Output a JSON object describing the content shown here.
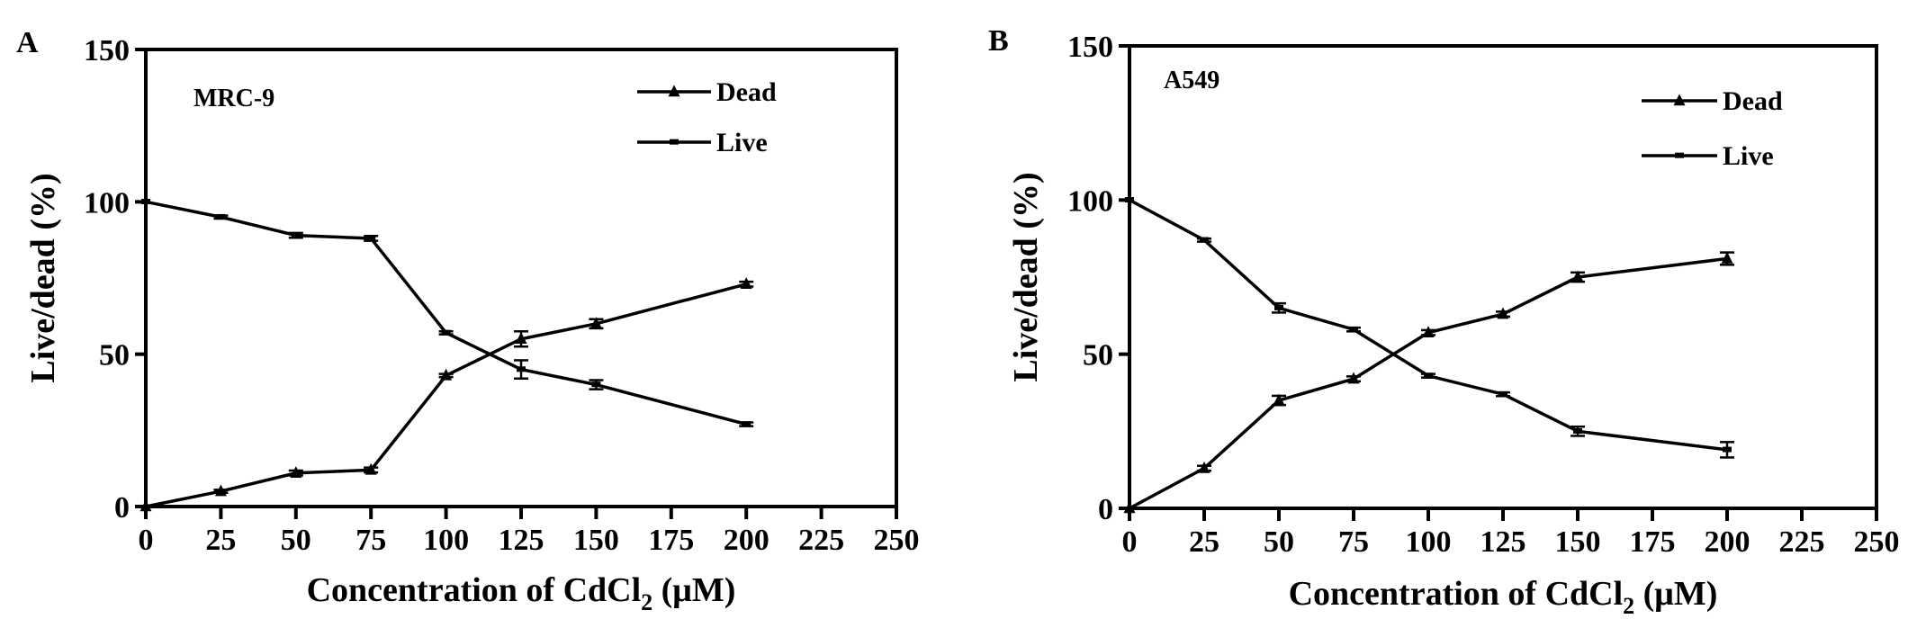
{
  "chart_data": [
    {
      "type": "line",
      "panel": "A",
      "annotation": "MRC-9",
      "xlabel": "Concentration of CdCl",
      "xlabel_sub": "2",
      "xlabel_unit": " (μM)",
      "ylabel": "Live/dead (%)",
      "xlim": [
        0,
        250
      ],
      "ylim": [
        0,
        150
      ],
      "x_ticks": [
        0,
        25,
        50,
        75,
        100,
        125,
        150,
        175,
        200,
        225,
        250
      ],
      "y_ticks": [
        0,
        50,
        100,
        150
      ],
      "legend_position": "top-right",
      "series": [
        {
          "name": "Dead",
          "marker": "triangle",
          "x": [
            0,
            25,
            50,
            75,
            100,
            125,
            150,
            200
          ],
          "y": [
            0,
            5,
            11,
            12,
            43,
            55,
            60,
            73
          ],
          "err": [
            0,
            0.5,
            0.8,
            0.8,
            0.5,
            2.5,
            1.5,
            0.8
          ]
        },
        {
          "name": "Live",
          "marker": "square",
          "x": [
            0,
            25,
            50,
            75,
            100,
            125,
            150,
            200
          ],
          "y": [
            100,
            95,
            89,
            88,
            57,
            45,
            40,
            27
          ],
          "err": [
            0,
            0.5,
            0.8,
            0.8,
            0.5,
            3,
            1.5,
            0.6
          ]
        }
      ]
    },
    {
      "type": "line",
      "panel": "B",
      "annotation": "A549",
      "xlabel": "Concentration of CdCl",
      "xlabel_sub": "2",
      "xlabel_unit": " (μM)",
      "ylabel": "Live/dead (%)",
      "xlim": [
        0,
        250
      ],
      "ylim": [
        0,
        150
      ],
      "x_ticks": [
        0,
        25,
        50,
        75,
        100,
        125,
        150,
        175,
        200,
        225,
        250
      ],
      "y_ticks": [
        0,
        50,
        100,
        150
      ],
      "legend_position": "top-right",
      "series": [
        {
          "name": "Dead",
          "marker": "triangle",
          "x": [
            0,
            25,
            50,
            75,
            100,
            125,
            150,
            200
          ],
          "y": [
            0,
            13,
            35,
            42,
            57,
            63,
            75,
            81
          ],
          "err": [
            0,
            0.8,
            1.5,
            0.8,
            0.8,
            0.8,
            1.5,
            2
          ]
        },
        {
          "name": "Live",
          "marker": "square",
          "x": [
            0,
            25,
            50,
            75,
            100,
            125,
            150,
            200
          ],
          "y": [
            100,
            87,
            65,
            58,
            43,
            37,
            25,
            19
          ],
          "err": [
            0,
            0.5,
            1.5,
            0.6,
            0.6,
            0.6,
            1.5,
            2.5
          ]
        }
      ]
    }
  ]
}
